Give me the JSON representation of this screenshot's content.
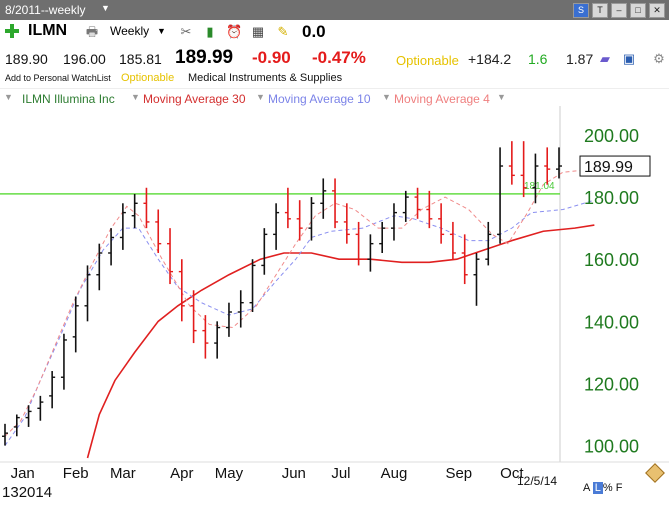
{
  "window": {
    "title": "8/2011--weekly",
    "icons": [
      "s-logo-icon",
      "tv-icon",
      "minimize-icon",
      "restore-icon",
      "close-icon"
    ]
  },
  "toolbar": {
    "symbol": "ILMN",
    "period": "Weekly",
    "change_value": "0.0",
    "icons": [
      "add-icon",
      "print-icon",
      "tools-icon",
      "indicators-icon",
      "alarm-icon",
      "calculator-icon",
      "note-icon"
    ]
  },
  "quote": {
    "open": "189.90",
    "high": "196.00",
    "low": "185.81",
    "last": "189.99",
    "net_change": "-0.90",
    "pct_change": "-0.47%",
    "optionable": "Optionable",
    "rs": "+184.2",
    "green_val": "1.6",
    "beta": "1.87"
  },
  "info": {
    "watchlist": "Add to Personal WatchList",
    "optionable": "Optionable",
    "industry": "Medical Instruments & Supplies"
  },
  "legend": [
    {
      "label": "ILMN Illumina Inc",
      "color": "#2e7d32"
    },
    {
      "label": "Moving Average 30",
      "color": "#d32f2f"
    },
    {
      "label": "Moving Average 10",
      "color": "#7b83e8"
    },
    {
      "label": "Moving Average 4",
      "color": "#ef7f7f"
    }
  ],
  "chart_data": {
    "type": "bar",
    "ylim": [
      96,
      209
    ],
    "y_ticks": [
      "100.00",
      "120.00",
      "140.00",
      "160.00",
      "180.00",
      "200.00"
    ],
    "x_labels": [
      "Jan",
      "Feb",
      "Mar",
      "Apr",
      "May",
      "Jun",
      "Jul",
      "Aug",
      "Sep",
      "Oct"
    ],
    "x_label_weeks": [
      1.5,
      6,
      10,
      15,
      19,
      24.5,
      28.5,
      33,
      38.5,
      43
    ],
    "year_label": "2014",
    "year_prefix": "13",
    "date_label": "12/5/14",
    "last_price_label": "189.99",
    "horizontal_line": {
      "value": 181.04,
      "label": "181.04",
      "color": "#66dd44"
    },
    "bars": [
      [
        103,
        107,
        100,
        104
      ],
      [
        106,
        110,
        103,
        109
      ],
      [
        109,
        113,
        106,
        111
      ],
      [
        112,
        116,
        108,
        114
      ],
      [
        116,
        124,
        112,
        122
      ],
      [
        122,
        136,
        118,
        134
      ],
      [
        135,
        148,
        130,
        145
      ],
      [
        145,
        158,
        140,
        155
      ],
      [
        155,
        165,
        150,
        162
      ],
      [
        162,
        170,
        158,
        167
      ],
      [
        167,
        178,
        163,
        175
      ],
      [
        174,
        181,
        170,
        178
      ],
      [
        178,
        183,
        170,
        172
      ],
      [
        172,
        176,
        162,
        165
      ],
      [
        165,
        170,
        152,
        156
      ],
      [
        156,
        160,
        140,
        145
      ],
      [
        145,
        150,
        133,
        137
      ],
      [
        137,
        142,
        128,
        133
      ],
      [
        133,
        140,
        128,
        138
      ],
      [
        138,
        146,
        135,
        143
      ],
      [
        143,
        150,
        138,
        146
      ],
      [
        146,
        160,
        143,
        158
      ],
      [
        158,
        170,
        155,
        168
      ],
      [
        168,
        178,
        163,
        175
      ],
      [
        175,
        183,
        170,
        173
      ],
      [
        173,
        179,
        166,
        170
      ],
      [
        170,
        180,
        166,
        178
      ],
      [
        178,
        186,
        173,
        182
      ],
      [
        182,
        186,
        170,
        172
      ],
      [
        172,
        178,
        165,
        168
      ],
      [
        168,
        172,
        158,
        160
      ],
      [
        160,
        168,
        156,
        165
      ],
      [
        165,
        172,
        162,
        170
      ],
      [
        170,
        178,
        166,
        175
      ],
      [
        175,
        182,
        172,
        180
      ],
      [
        180,
        183,
        173,
        176
      ],
      [
        176,
        182,
        170,
        173
      ],
      [
        173,
        178,
        165,
        168
      ],
      [
        168,
        172,
        160,
        162
      ],
      [
        162,
        168,
        152,
        155
      ],
      [
        155,
        162,
        145,
        160
      ],
      [
        160,
        172,
        158,
        168
      ],
      [
        168,
        196,
        165,
        190
      ],
      [
        190,
        198,
        184,
        187
      ],
      [
        187,
        198,
        180,
        183
      ],
      [
        183,
        194,
        178,
        190
      ],
      [
        190,
        196,
        184,
        189
      ],
      [
        189,
        196,
        186,
        190
      ]
    ],
    "ma30": [
      [
        21,
        96
      ],
      [
        24,
        110
      ],
      [
        28,
        121
      ],
      [
        33,
        130
      ],
      [
        39,
        140
      ],
      [
        44,
        145
      ],
      [
        50,
        150
      ],
      [
        57,
        155
      ],
      [
        65,
        160
      ],
      [
        71,
        162
      ],
      [
        78,
        162
      ],
      [
        85,
        160
      ],
      [
        93,
        160
      ],
      [
        101,
        159
      ],
      [
        108,
        159
      ],
      [
        115,
        160
      ],
      [
        122,
        163
      ],
      [
        129,
        166
      ],
      [
        137,
        169
      ],
      [
        145,
        170
      ],
      [
        150,
        171
      ]
    ],
    "ma10": [
      [
        0,
        100
      ],
      [
        5,
        109
      ],
      [
        9,
        121
      ],
      [
        14,
        135
      ],
      [
        19,
        150
      ],
      [
        25,
        163
      ],
      [
        30,
        170
      ],
      [
        34,
        170
      ],
      [
        39,
        160
      ],
      [
        44,
        151
      ],
      [
        50,
        146
      ],
      [
        57,
        142
      ],
      [
        63,
        144
      ],
      [
        69,
        153
      ],
      [
        74,
        160
      ],
      [
        78,
        167
      ],
      [
        83,
        169
      ],
      [
        91,
        170
      ],
      [
        99,
        174
      ],
      [
        104,
        173
      ],
      [
        111,
        170
      ],
      [
        118,
        166
      ],
      [
        123,
        166
      ],
      [
        129,
        170
      ],
      [
        134,
        175
      ],
      [
        142,
        176
      ],
      [
        150,
        179
      ]
    ],
    "ma4": [
      [
        0,
        103
      ],
      [
        4,
        108
      ],
      [
        8,
        118
      ],
      [
        12,
        130
      ],
      [
        17,
        145
      ],
      [
        22,
        158
      ],
      [
        27,
        170
      ],
      [
        31,
        177
      ],
      [
        34,
        174
      ],
      [
        40,
        160
      ],
      [
        47,
        145
      ],
      [
        52,
        139
      ],
      [
        58,
        138
      ],
      [
        64,
        145
      ],
      [
        69,
        155
      ],
      [
        74,
        165
      ],
      [
        79,
        174
      ],
      [
        84,
        178
      ],
      [
        89,
        176
      ],
      [
        95,
        170
      ],
      [
        101,
        170
      ],
      [
        106,
        176
      ],
      [
        112,
        180
      ],
      [
        118,
        176
      ],
      [
        124,
        168
      ],
      [
        128,
        165
      ],
      [
        133,
        175
      ],
      [
        137,
        184
      ],
      [
        142,
        188
      ],
      [
        150,
        189
      ]
    ]
  },
  "footer": {
    "scale_left": "A",
    "scale_mid": "L",
    "scale_right": "% F"
  }
}
